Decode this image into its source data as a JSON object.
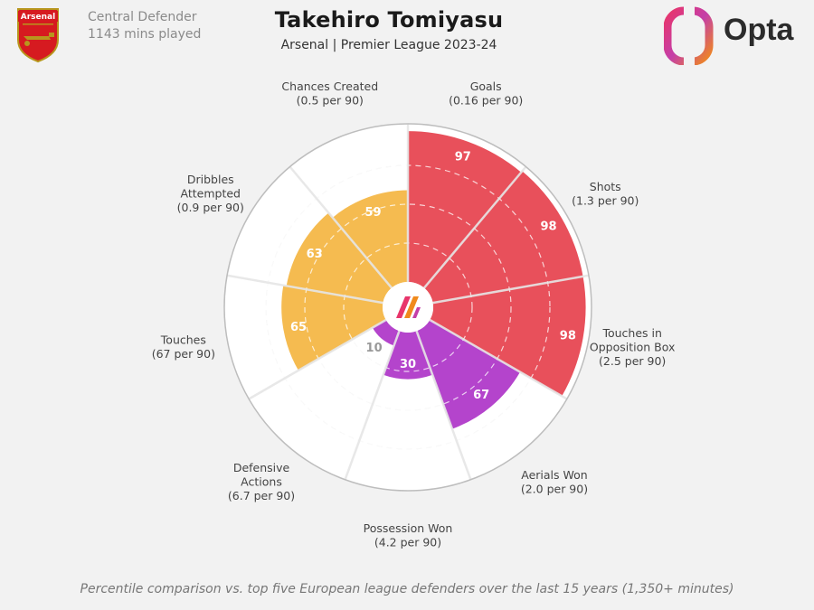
{
  "header": {
    "player_name": "Takehiro Tomiyasu",
    "subtitle": "Arsenal | Premier League 2023-24",
    "position": "Central Defender",
    "minutes": "1143 mins played",
    "club_crest": "arsenal-crest-icon",
    "crest_text": "Arsenal",
    "provider_logo": "opta-logo-icon",
    "provider_name": "Opta"
  },
  "footer": {
    "note": "Percentile comparison vs. top five European league defenders over the last 15 years (1,350+ minutes)"
  },
  "colors": {
    "attacking": "#e8505b",
    "defending": "#b444cc",
    "possession": "#f5bb50",
    "background": "#f2f2f2",
    "grid": "#d2d2d2"
  },
  "chart_data": {
    "type": "polar-bar",
    "scale": [
      0,
      100
    ],
    "grid_rings": [
      25,
      50,
      75
    ],
    "categories": [
      {
        "label": "Goals",
        "sub": "(0.16 per 90)",
        "value": 97,
        "group": "attacking"
      },
      {
        "label": "Shots",
        "sub": "(1.3 per 90)",
        "value": 98,
        "group": "attacking"
      },
      {
        "label": "Touches in Opposition Box",
        "label_lines": [
          "Touches in",
          "Opposition Box"
        ],
        "sub": "(2.5 per 90)",
        "value": 98,
        "group": "attacking"
      },
      {
        "label": "Aerials Won",
        "sub": "(2.0 per 90)",
        "value": 67,
        "group": "defending"
      },
      {
        "label": "Possession Won",
        "sub": "(4.2 per 90)",
        "value": 30,
        "group": "defending"
      },
      {
        "label": "Defensive Actions",
        "label_lines": [
          "Defensive",
          "Actions"
        ],
        "sub": "(6.7 per 90)",
        "value": 10,
        "group": "defending"
      },
      {
        "label": "Touches",
        "sub": "(67 per 90)",
        "value": 65,
        "group": "possession"
      },
      {
        "label": "Dribbles Attempted",
        "label_lines": [
          "Dribbles",
          "Attempted"
        ],
        "sub": "(0.9 per 90)",
        "value": 63,
        "group": "possession"
      },
      {
        "label": "Chances Created",
        "sub": "(0.5 per 90)",
        "value": 59,
        "group": "possession"
      }
    ]
  }
}
